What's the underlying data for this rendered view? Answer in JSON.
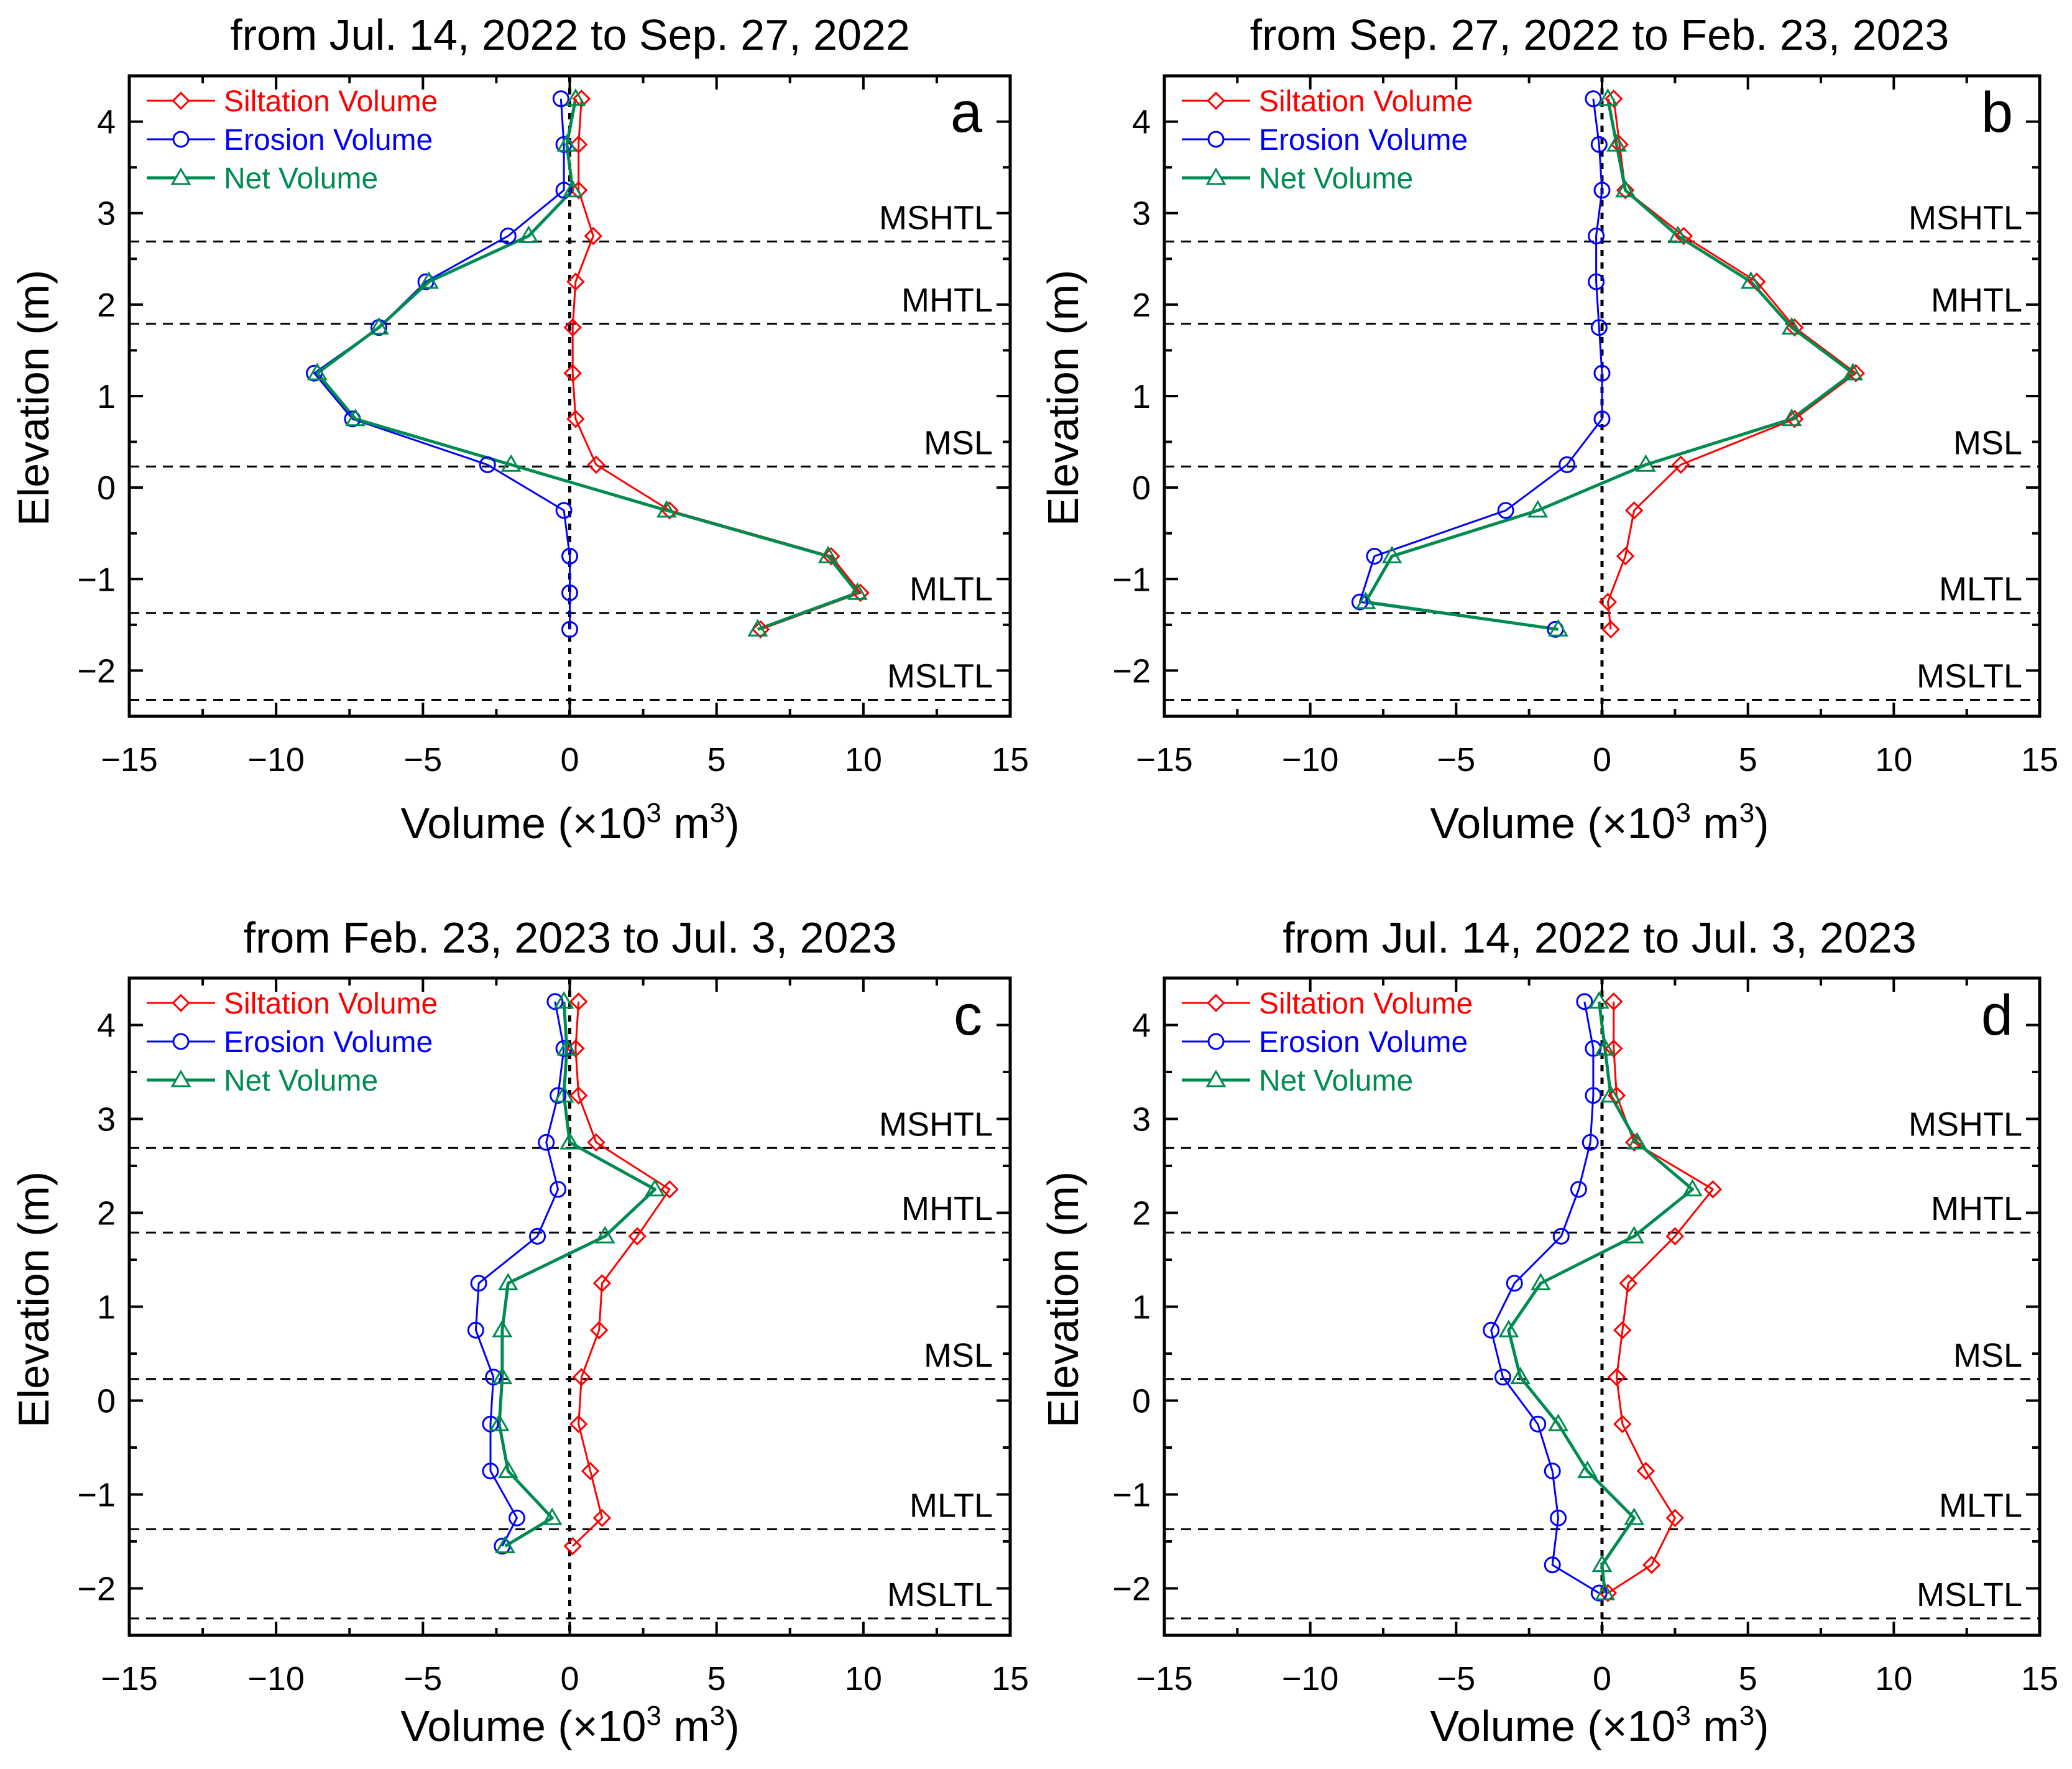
{
  "figure": {
    "xlabel_main": "Volume (×10",
    "xlabel_exp": "3",
    "xlabel_unit": " m",
    "xlabel_unit_exp": "3",
    "xlabel_close": ")",
    "ylabel": "Elevation (m)"
  },
  "colors": {
    "siltation": "#ff0000",
    "erosion": "#0000ff",
    "net": "#008b50",
    "axis": "#000000"
  },
  "chart_data": [
    {
      "type": "line",
      "panel_letter": "a",
      "title": "from Jul. 14, 2022 to Sep. 27, 2022",
      "xlabel": "Volume (×10³ m³)",
      "ylabel": "Elevation (m)",
      "xlim": [
        -15,
        15
      ],
      "ylim": [
        -2.5,
        4.5
      ],
      "xticks": [
        -15,
        -10,
        -5,
        0,
        5,
        10,
        15
      ],
      "yticks": [
        -2,
        -1,
        0,
        1,
        2,
        3,
        4
      ],
      "xtick_labels": [
        "−15",
        "−10",
        "−5",
        "0",
        "5",
        "10",
        "15"
      ],
      "ytick_labels": [
        "−2",
        "−1",
        "0",
        "1",
        "2",
        "3",
        "4"
      ],
      "legend_position": "top-left",
      "reference_lines": [
        {
          "label": "MSHTL",
          "y": 2.69
        },
        {
          "label": "MHTL",
          "y": 1.79
        },
        {
          "label": "MSL",
          "y": 0.23
        },
        {
          "label": "MLTL",
          "y": -1.37
        },
        {
          "label": "MSLTL",
          "y": -2.32
        }
      ],
      "series": [
        {
          "name": "Siltation Volume",
          "marker": "diamond",
          "points": [
            [
              0.4,
              4.25
            ],
            [
              0.3,
              3.75
            ],
            [
              0.3,
              3.25
            ],
            [
              0.8,
              2.75
            ],
            [
              0.2,
              2.25
            ],
            [
              0.1,
              1.75
            ],
            [
              0.1,
              1.25
            ],
            [
              0.2,
              0.75
            ],
            [
              0.9,
              0.25
            ],
            [
              3.4,
              -0.25
            ],
            [
              8.9,
              -0.75
            ],
            [
              9.9,
              -1.15
            ],
            [
              6.5,
              -1.55
            ]
          ]
        },
        {
          "name": "Erosion Volume",
          "marker": "circle",
          "points": [
            [
              -0.3,
              4.25
            ],
            [
              -0.2,
              3.75
            ],
            [
              -0.2,
              3.25
            ],
            [
              -2.1,
              2.75
            ],
            [
              -4.9,
              2.25
            ],
            [
              -6.5,
              1.75
            ],
            [
              -8.7,
              1.25
            ],
            [
              -7.4,
              0.75
            ],
            [
              -2.8,
              0.25
            ],
            [
              -0.2,
              -0.25
            ],
            [
              0.0,
              -0.75
            ],
            [
              0.0,
              -1.15
            ],
            [
              0.0,
              -1.55
            ]
          ]
        },
        {
          "name": "Net Volume",
          "marker": "triangle",
          "points": [
            [
              0.2,
              4.25
            ],
            [
              -0.1,
              3.75
            ],
            [
              0.1,
              3.25
            ],
            [
              -1.4,
              2.75
            ],
            [
              -4.8,
              2.25
            ],
            [
              -6.5,
              1.75
            ],
            [
              -8.6,
              1.25
            ],
            [
              -7.3,
              0.75
            ],
            [
              -2.0,
              0.25
            ],
            [
              3.3,
              -0.25
            ],
            [
              8.8,
              -0.75
            ],
            [
              9.8,
              -1.15
            ],
            [
              6.4,
              -1.55
            ]
          ]
        }
      ]
    },
    {
      "type": "line",
      "panel_letter": "b",
      "title": "from Sep. 27, 2022 to Feb. 23, 2023",
      "xlabel": "Volume (×10³ m³)",
      "ylabel": "Elevation (m)",
      "xlim": [
        -15,
        15
      ],
      "ylim": [
        -2.5,
        4.5
      ],
      "xticks": [
        -15,
        -10,
        -5,
        0,
        5,
        10,
        15
      ],
      "yticks": [
        -2,
        -1,
        0,
        1,
        2,
        3,
        4
      ],
      "xtick_labels": [
        "−15",
        "−10",
        "−5",
        "0",
        "5",
        "10",
        "15"
      ],
      "ytick_labels": [
        "−2",
        "−1",
        "0",
        "1",
        "2",
        "3",
        "4"
      ],
      "legend_position": "top-left",
      "reference_lines": [
        {
          "label": "MSHTL",
          "y": 2.69
        },
        {
          "label": "MHTL",
          "y": 1.79
        },
        {
          "label": "MSL",
          "y": 0.23
        },
        {
          "label": "MLTL",
          "y": -1.37
        },
        {
          "label": "MSLTL",
          "y": -2.32
        }
      ],
      "series": [
        {
          "name": "Siltation Volume",
          "marker": "diamond",
          "points": [
            [
              0.4,
              4.25
            ],
            [
              0.6,
              3.75
            ],
            [
              0.8,
              3.25
            ],
            [
              2.8,
              2.75
            ],
            [
              5.3,
              2.25
            ],
            [
              6.6,
              1.75
            ],
            [
              8.7,
              1.25
            ],
            [
              6.6,
              0.75
            ],
            [
              2.7,
              0.25
            ],
            [
              1.1,
              -0.25
            ],
            [
              0.8,
              -0.75
            ],
            [
              0.2,
              -1.25
            ],
            [
              0.3,
              -1.55
            ]
          ]
        },
        {
          "name": "Erosion Volume",
          "marker": "circle",
          "points": [
            [
              -0.3,
              4.25
            ],
            [
              -0.1,
              3.75
            ],
            [
              0.0,
              3.25
            ],
            [
              -0.2,
              2.75
            ],
            [
              -0.2,
              2.25
            ],
            [
              -0.1,
              1.75
            ],
            [
              0.0,
              1.25
            ],
            [
              0.0,
              0.75
            ],
            [
              -1.2,
              0.25
            ],
            [
              -3.3,
              -0.25
            ],
            [
              -7.8,
              -0.75
            ],
            [
              -8.3,
              -1.25
            ],
            [
              -1.6,
              -1.55
            ]
          ]
        },
        {
          "name": "Net Volume",
          "marker": "triangle",
          "points": [
            [
              0.2,
              4.25
            ],
            [
              0.5,
              3.75
            ],
            [
              0.8,
              3.25
            ],
            [
              2.6,
              2.75
            ],
            [
              5.1,
              2.25
            ],
            [
              6.5,
              1.75
            ],
            [
              8.6,
              1.25
            ],
            [
              6.5,
              0.75
            ],
            [
              1.5,
              0.25
            ],
            [
              -2.2,
              -0.25
            ],
            [
              -7.2,
              -0.75
            ],
            [
              -8.1,
              -1.25
            ],
            [
              -1.5,
              -1.55
            ]
          ]
        }
      ]
    },
    {
      "type": "line",
      "panel_letter": "c",
      "title": "from Feb. 23, 2023 to Jul. 3, 2023",
      "xlabel": "Volume (×10³ m³)",
      "ylabel": "Elevation (m)",
      "xlim": [
        -15,
        15
      ],
      "ylim": [
        -2.5,
        4.5
      ],
      "xticks": [
        -15,
        -10,
        -5,
        0,
        5,
        10,
        15
      ],
      "yticks": [
        -2,
        -1,
        0,
        1,
        2,
        3,
        4
      ],
      "xtick_labels": [
        "−15",
        "−10",
        "−5",
        "0",
        "5",
        "10",
        "15"
      ],
      "ytick_labels": [
        "−2",
        "−1",
        "0",
        "1",
        "2",
        "3",
        "4"
      ],
      "legend_position": "top-left",
      "reference_lines": [
        {
          "label": "MSHTL",
          "y": 2.69
        },
        {
          "label": "MHTL",
          "y": 1.79
        },
        {
          "label": "MSL",
          "y": 0.23
        },
        {
          "label": "MLTL",
          "y": -1.37
        },
        {
          "label": "MSLTL",
          "y": -2.32
        }
      ],
      "series": [
        {
          "name": "Siltation Volume",
          "marker": "diamond",
          "points": [
            [
              0.3,
              4.25
            ],
            [
              0.2,
              3.75
            ],
            [
              0.3,
              3.25
            ],
            [
              0.9,
              2.75
            ],
            [
              3.4,
              2.25
            ],
            [
              2.3,
              1.75
            ],
            [
              1.1,
              1.25
            ],
            [
              1.0,
              0.75
            ],
            [
              0.4,
              0.25
            ],
            [
              0.3,
              -0.25
            ],
            [
              0.7,
              -0.75
            ],
            [
              1.1,
              -1.25
            ],
            [
              0.1,
              -1.55
            ]
          ]
        },
        {
          "name": "Erosion Volume",
          "marker": "circle",
          "points": [
            [
              -0.5,
              4.25
            ],
            [
              -0.2,
              3.75
            ],
            [
              -0.4,
              3.25
            ],
            [
              -0.8,
              2.75
            ],
            [
              -0.4,
              2.25
            ],
            [
              -1.1,
              1.75
            ],
            [
              -3.1,
              1.25
            ],
            [
              -3.2,
              0.75
            ],
            [
              -2.6,
              0.25
            ],
            [
              -2.7,
              -0.25
            ],
            [
              -2.7,
              -0.75
            ],
            [
              -1.8,
              -1.25
            ],
            [
              -2.3,
              -1.55
            ]
          ]
        },
        {
          "name": "Net Volume",
          "marker": "triangle",
          "points": [
            [
              -0.2,
              4.25
            ],
            [
              -0.1,
              3.75
            ],
            [
              -0.2,
              3.25
            ],
            [
              0.0,
              2.75
            ],
            [
              2.9,
              2.25
            ],
            [
              1.2,
              1.75
            ],
            [
              -2.1,
              1.25
            ],
            [
              -2.3,
              0.75
            ],
            [
              -2.3,
              0.25
            ],
            [
              -2.4,
              -0.25
            ],
            [
              -2.1,
              -0.75
            ],
            [
              -0.6,
              -1.25
            ],
            [
              -2.2,
              -1.55
            ]
          ]
        }
      ]
    },
    {
      "type": "line",
      "panel_letter": "d",
      "title": "from Jul. 14, 2022 to Jul. 3, 2023",
      "xlabel": "Volume (×10³ m³)",
      "ylabel": "Elevation (m)",
      "xlim": [
        -15,
        15
      ],
      "ylim": [
        -2.5,
        4.5
      ],
      "xticks": [
        -15,
        -10,
        -5,
        0,
        5,
        10,
        15
      ],
      "yticks": [
        -2,
        -1,
        0,
        1,
        2,
        3,
        4
      ],
      "xtick_labels": [
        "−15",
        "−10",
        "−5",
        "0",
        "5",
        "10",
        "15"
      ],
      "ytick_labels": [
        "−2",
        "−1",
        "0",
        "1",
        "2",
        "3",
        "4"
      ],
      "legend_position": "top-left",
      "reference_lines": [
        {
          "label": "MSHTL",
          "y": 2.69
        },
        {
          "label": "MHTL",
          "y": 1.79
        },
        {
          "label": "MSL",
          "y": 0.23
        },
        {
          "label": "MLTL",
          "y": -1.37
        },
        {
          "label": "MSLTL",
          "y": -2.32
        }
      ],
      "series": [
        {
          "name": "Siltation Volume",
          "marker": "diamond",
          "points": [
            [
              0.4,
              4.25
            ],
            [
              0.4,
              3.75
            ],
            [
              0.5,
              3.25
            ],
            [
              1.1,
              2.75
            ],
            [
              3.8,
              2.25
            ],
            [
              2.5,
              1.75
            ],
            [
              0.9,
              1.25
            ],
            [
              0.7,
              0.75
            ],
            [
              0.5,
              0.25
            ],
            [
              0.7,
              -0.25
            ],
            [
              1.5,
              -0.75
            ],
            [
              2.5,
              -1.25
            ],
            [
              1.7,
              -1.75
            ],
            [
              0.2,
              -2.05
            ]
          ]
        },
        {
          "name": "Erosion Volume",
          "marker": "circle",
          "points": [
            [
              -0.6,
              4.25
            ],
            [
              -0.3,
              3.75
            ],
            [
              -0.3,
              3.25
            ],
            [
              -0.4,
              2.75
            ],
            [
              -0.8,
              2.25
            ],
            [
              -1.4,
              1.75
            ],
            [
              -3.0,
              1.25
            ],
            [
              -3.8,
              0.75
            ],
            [
              -3.4,
              0.25
            ],
            [
              -2.2,
              -0.25
            ],
            [
              -1.7,
              -0.75
            ],
            [
              -1.5,
              -1.25
            ],
            [
              -1.7,
              -1.75
            ],
            [
              -0.1,
              -2.05
            ]
          ]
        },
        {
          "name": "Net Volume",
          "marker": "triangle",
          "points": [
            [
              -0.1,
              4.25
            ],
            [
              0.1,
              3.75
            ],
            [
              0.3,
              3.25
            ],
            [
              1.2,
              2.75
            ],
            [
              3.1,
              2.25
            ],
            [
              1.1,
              1.75
            ],
            [
              -2.1,
              1.25
            ],
            [
              -3.2,
              0.75
            ],
            [
              -2.8,
              0.25
            ],
            [
              -1.5,
              -0.25
            ],
            [
              -0.5,
              -0.75
            ],
            [
              1.1,
              -1.25
            ],
            [
              0.0,
              -1.75
            ],
            [
              0.1,
              -2.05
            ]
          ]
        }
      ]
    }
  ]
}
